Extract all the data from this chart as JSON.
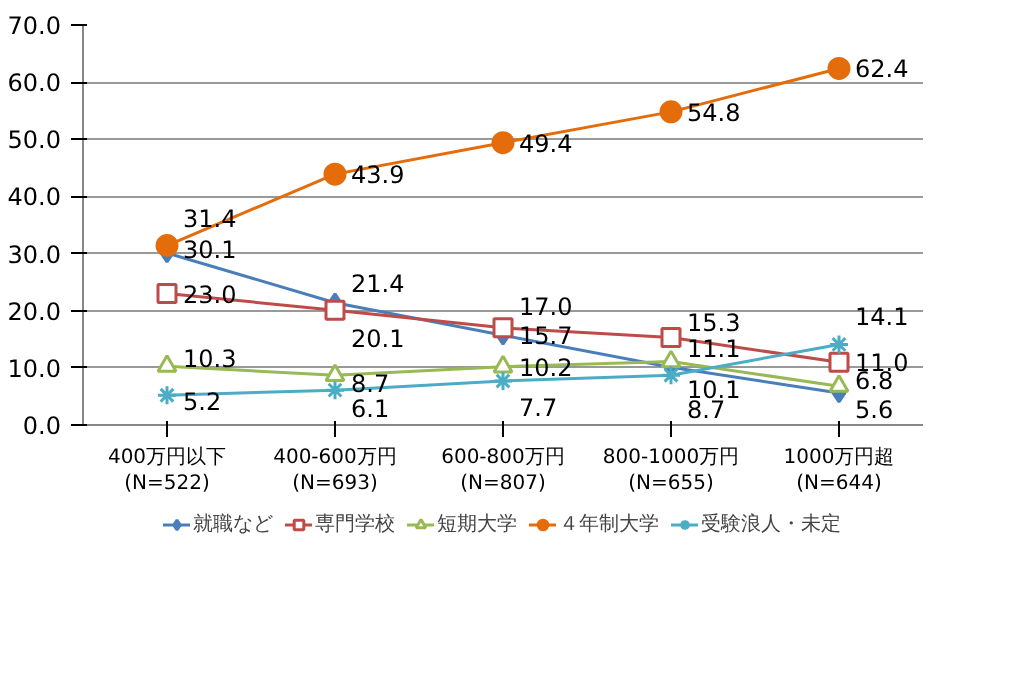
{
  "chart_data": {
    "type": "line",
    "categories": [
      "400万円以下\n(N=522)",
      "400-600万円\n(N=693)",
      "600-800万円\n(N=807)",
      "800-1000万円\n(N=655)",
      "1000万円超\n(N=644)"
    ],
    "series": [
      {
        "name": "就職など",
        "color": "#4a7ebb",
        "marker": "diamond",
        "values": [
          30.1,
          21.4,
          15.7,
          10.1,
          5.6
        ],
        "value_labels": [
          "30.1",
          "21.4",
          "15.7",
          "10.1",
          "5.6"
        ]
      },
      {
        "name": "専門学校",
        "color": "#be4b48",
        "marker": "square",
        "values": [
          23.0,
          20.1,
          17.0,
          15.3,
          11.0
        ],
        "value_labels": [
          "23.0",
          "20.1",
          "17.0",
          "15.3",
          "11.0"
        ]
      },
      {
        "name": "短期大学",
        "color": "#98b954",
        "marker": "triangle",
        "values": [
          10.3,
          8.7,
          10.2,
          11.1,
          6.8
        ],
        "value_labels": [
          "10.3",
          "8.7",
          "10.2",
          "11.1",
          "6.8"
        ]
      },
      {
        "name": "４年制大学",
        "color": "#e46c0a",
        "marker": "circle",
        "values": [
          31.4,
          43.9,
          49.4,
          54.8,
          62.4
        ],
        "value_labels": [
          "31.4",
          "43.9",
          "49.4",
          "54.8",
          "62.4"
        ]
      },
      {
        "name": "受験浪人・未定",
        "color": "#4bacc6",
        "marker": "cross",
        "values": [
          5.2,
          6.1,
          7.7,
          8.7,
          14.1
        ],
        "value_labels": [
          "5.2",
          "6.1",
          "7.7",
          "8.7",
          "14.1"
        ]
      }
    ],
    "ylim": [
      0,
      70
    ],
    "yticks": [
      {
        "value": 0,
        "label": "0.0"
      },
      {
        "value": 10,
        "label": "10.0"
      },
      {
        "value": 20,
        "label": "20.0"
      },
      {
        "value": 30,
        "label": "30.0"
      },
      {
        "value": 40,
        "label": "40.0"
      },
      {
        "value": 50,
        "label": "50.0"
      },
      {
        "value": 60,
        "label": "60.0"
      },
      {
        "value": 70,
        "label": "70.0"
      }
    ],
    "grid": "y",
    "legend": "bottom"
  }
}
